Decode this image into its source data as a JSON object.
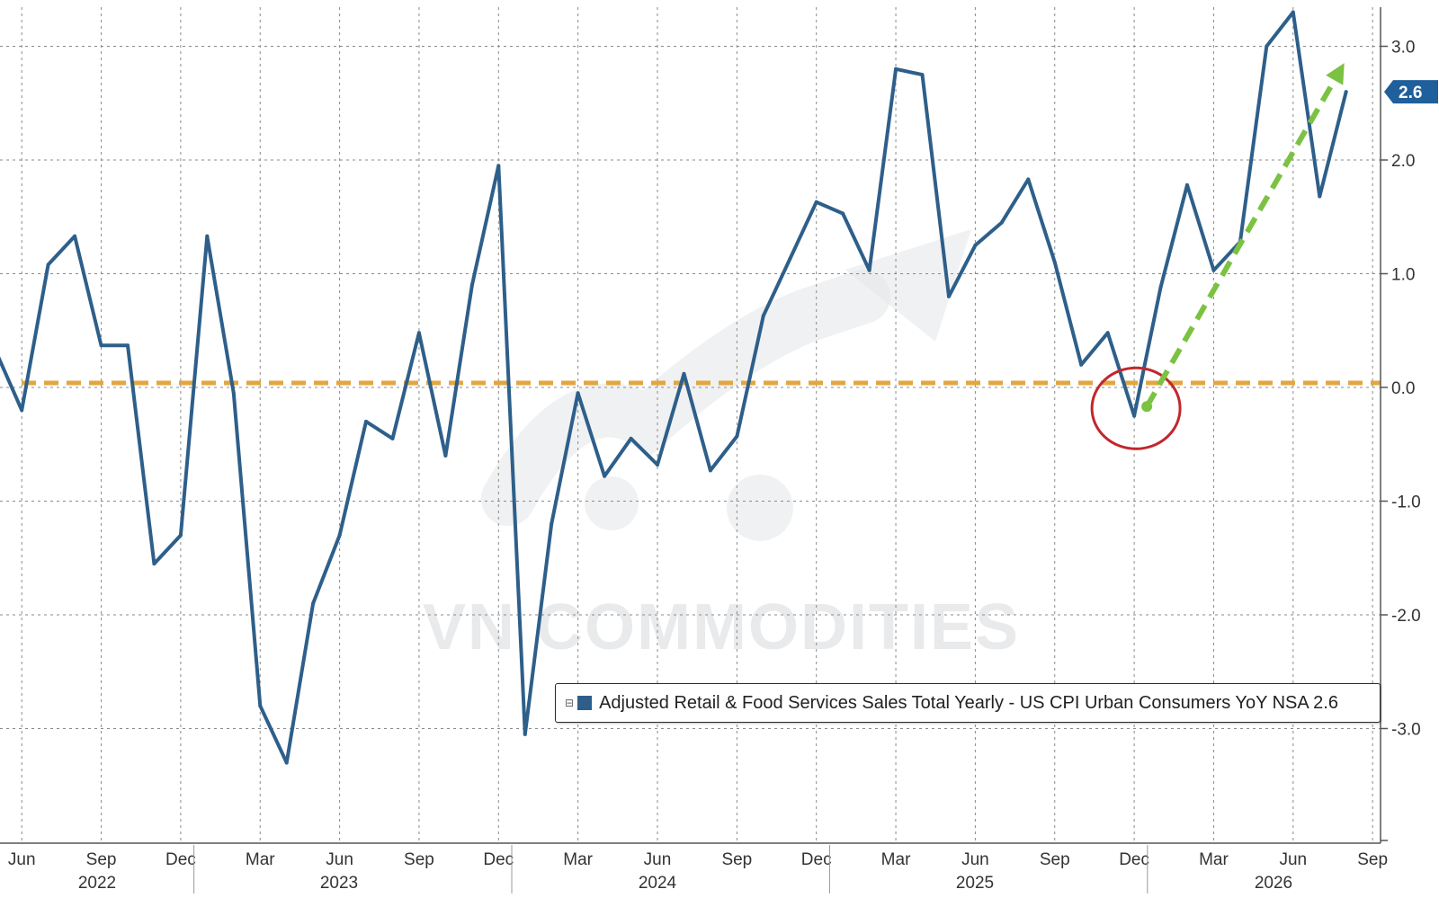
{
  "colors": {
    "series": "#2e5f8a",
    "zero_line": "#e3a640",
    "trend_arrow": "#7cc242",
    "highlight_circle": "#c0282d",
    "grid": "#8a8a8a",
    "watermark": "#e6e8ea",
    "last_value_tag": "#1f5f9b"
  },
  "watermark": {
    "text": "VN COMMODITIES",
    "icon": "rising-arrow-logo-icon"
  },
  "legend": {
    "toggle_icon": "collapse-toggle-icon",
    "label": "Adjusted Retail & Food Services Sales Total Yearly - US CPI Urban Consumers YoY NSA 2.6"
  },
  "last_value_label": "2.6",
  "chart_data": {
    "type": "line",
    "x_axis": {
      "month_ticks": [
        "Jun",
        "Sep",
        "Dec",
        "Mar",
        "Jun",
        "Sep",
        "Dec",
        "Mar",
        "Jun",
        "Sep",
        "Dec",
        "Mar",
        "Jun",
        "Sep",
        "Dec",
        "Mar",
        "Jun",
        "Sep"
      ],
      "year_labels": [
        "2022",
        "2023",
        "2024",
        "2025",
        "2026"
      ]
    },
    "y_axis": {
      "ticks": [
        "3.0",
        "2.0",
        "1.0",
        "0.0",
        "-1.0",
        "-2.0",
        "-3.0"
      ],
      "tick_values": [
        3,
        2,
        1,
        0,
        -1,
        -2,
        -3
      ],
      "range": [
        -4,
        3.3
      ],
      "position": "right"
    },
    "grid": true,
    "series": [
      {
        "name": "Adjusted Retail & Food Services Sales Total Yearly - US CPI Urban Consumers YoY NSA",
        "x": [
          "2022-05",
          "2022-06",
          "2022-07",
          "2022-08",
          "2022-09",
          "2022-10",
          "2022-11",
          "2022-12",
          "2023-01",
          "2023-02",
          "2023-03",
          "2023-04",
          "2023-05",
          "2023-06",
          "2023-07",
          "2023-08",
          "2023-09",
          "2023-10",
          "2023-11",
          "2023-12",
          "2024-01",
          "2024-02",
          "2024-03",
          "2024-04",
          "2024-05",
          "2024-06",
          "2024-07",
          "2024-08",
          "2024-09",
          "2024-10",
          "2024-11",
          "2024-12",
          "2025-01",
          "2025-02",
          "2025-03",
          "2025-04",
          "2025-05",
          "2025-06",
          "2025-07",
          "2025-08",
          "2025-09",
          "2025-10",
          "2025-11",
          "2025-12",
          "2026-01",
          "2026-02",
          "2026-03",
          "2026-04",
          "2026-05",
          "2026-06",
          "2026-07",
          "2026-08"
        ],
        "values": [
          0.33,
          -0.2,
          1.08,
          1.33,
          0.37,
          0.37,
          -1.55,
          -1.3,
          1.33,
          -0.05,
          -2.8,
          -3.3,
          -1.9,
          -1.3,
          -0.3,
          -0.45,
          0.48,
          -0.6,
          0.9,
          1.95,
          -3.05,
          -1.2,
          -0.05,
          -0.78,
          -0.45,
          -0.68,
          0.12,
          -0.73,
          -0.43,
          0.63,
          1.13,
          1.63,
          1.53,
          1.03,
          2.8,
          2.75,
          0.8,
          1.25,
          1.45,
          1.83,
          1.1,
          0.2,
          0.48,
          -0.25,
          0.88,
          1.78,
          1.03,
          1.28,
          3.0,
          3.3,
          1.68,
          2.6
        ]
      }
    ],
    "reference_line": {
      "y": 0.0,
      "style": "dashed"
    },
    "annotations": [
      {
        "type": "circle",
        "x": "2025-12",
        "y": -0.2
      },
      {
        "type": "arrow",
        "from": {
          "x": "2025-12",
          "y": -0.2
        },
        "to": {
          "x": "2026-08",
          "y": 2.9
        },
        "style": "dashed"
      }
    ],
    "last_value": 2.6
  }
}
